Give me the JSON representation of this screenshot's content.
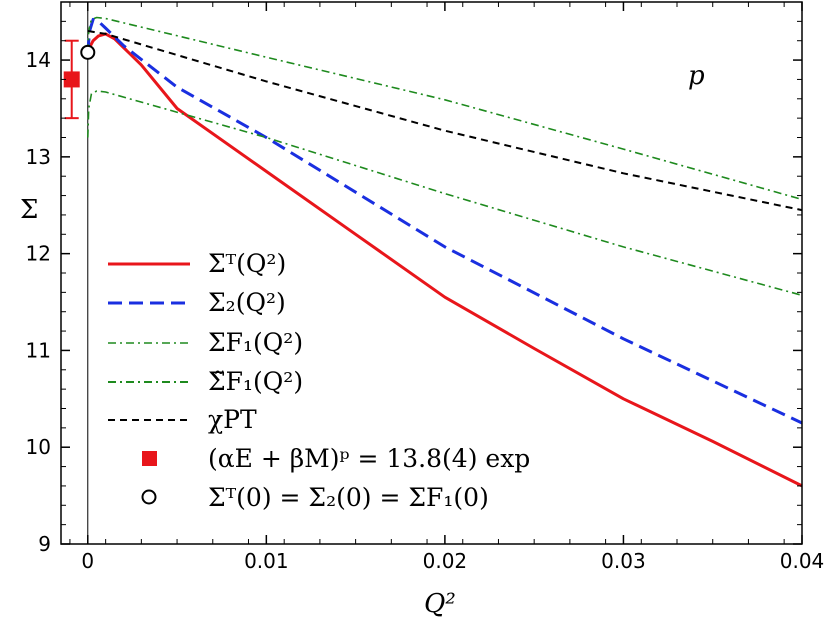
{
  "chart_data": {
    "type": "line",
    "xlabel": "Q²",
    "ylabel": "Σ",
    "xlim": [
      -0.0015,
      0.04
    ],
    "ylim": [
      9,
      14.6
    ],
    "x_ticks": [
      "0",
      "0.01",
      "0.02",
      "0.03",
      "0.04"
    ],
    "x_tick_values": [
      0,
      0.01,
      0.02,
      0.03,
      0.04
    ],
    "y_ticks": [
      "9",
      "10",
      "11",
      "12",
      "13",
      "14"
    ],
    "y_tick_values": [
      9,
      10,
      11,
      12,
      13,
      14
    ],
    "annotation": "p",
    "colors": {
      "red": "#e8161b",
      "blue": "#1a2fe0",
      "green": "#1e8a1e",
      "black": "#000000"
    },
    "series": [
      {
        "name": "Σᵀ(Q²)",
        "color": "#e8161b",
        "style": "solid",
        "x": [
          0,
          0.0001,
          0.0003,
          0.0006,
          0.001,
          0.0015,
          0.002,
          0.003,
          0.005,
          0.01,
          0.015,
          0.02,
          0.025,
          0.03,
          0.035,
          0.04
        ],
        "y": [
          14.08,
          14.13,
          14.2,
          14.25,
          14.27,
          14.22,
          14.13,
          13.95,
          13.5,
          12.85,
          12.2,
          11.55,
          11.02,
          10.5,
          10.06,
          9.6
        ]
      },
      {
        "name": "Σ₂(Q²)",
        "color": "#1a2fe0",
        "style": "dashed",
        "x": [
          0,
          0.0001,
          0.0003,
          0.0006,
          0.001,
          0.002,
          0.005,
          0.01,
          0.02,
          0.03,
          0.04
        ],
        "y": [
          14.08,
          14.3,
          14.42,
          14.4,
          14.33,
          14.15,
          13.72,
          13.2,
          12.07,
          11.12,
          10.25
        ]
      },
      {
        "name": "ΣF₁(Q²)",
        "color": "#1e8a1e",
        "style": "dashdot",
        "x": [
          0,
          5e-05,
          0.0002,
          0.0005,
          0.001,
          0.01,
          0.02,
          0.03,
          0.04
        ],
        "y": [
          14.08,
          14.3,
          14.42,
          14.44,
          14.43,
          14.03,
          13.59,
          13.08,
          12.56
        ]
      },
      {
        "name": "Σ̃F₁(Q²)",
        "color": "#1e8a1e",
        "style": "dashdot",
        "x": [
          0,
          5e-05,
          0.0002,
          0.0005,
          0.001,
          0.01,
          0.02,
          0.03,
          0.04
        ],
        "y": [
          13.2,
          13.5,
          13.65,
          13.68,
          13.67,
          13.2,
          12.62,
          12.07,
          11.57
        ]
      },
      {
        "name": "χPT",
        "color": "#000000",
        "style": "dashed-fine",
        "x": [
          0,
          0.001,
          0.01,
          0.02,
          0.03,
          0.04
        ],
        "y": [
          14.3,
          14.27,
          13.78,
          13.27,
          12.83,
          12.45
        ]
      }
    ],
    "experiment": {
      "label": "(αE + βM)ᵖ = 13.8(4) exp",
      "x": -0.0009,
      "y": 13.8,
      "err": 0.4,
      "color": "#e8161b"
    },
    "origin_point": {
      "label": "Σᵀ(0) = Σ₂(0) = ΣF₁(0)",
      "x": 0,
      "y": 14.08
    }
  }
}
